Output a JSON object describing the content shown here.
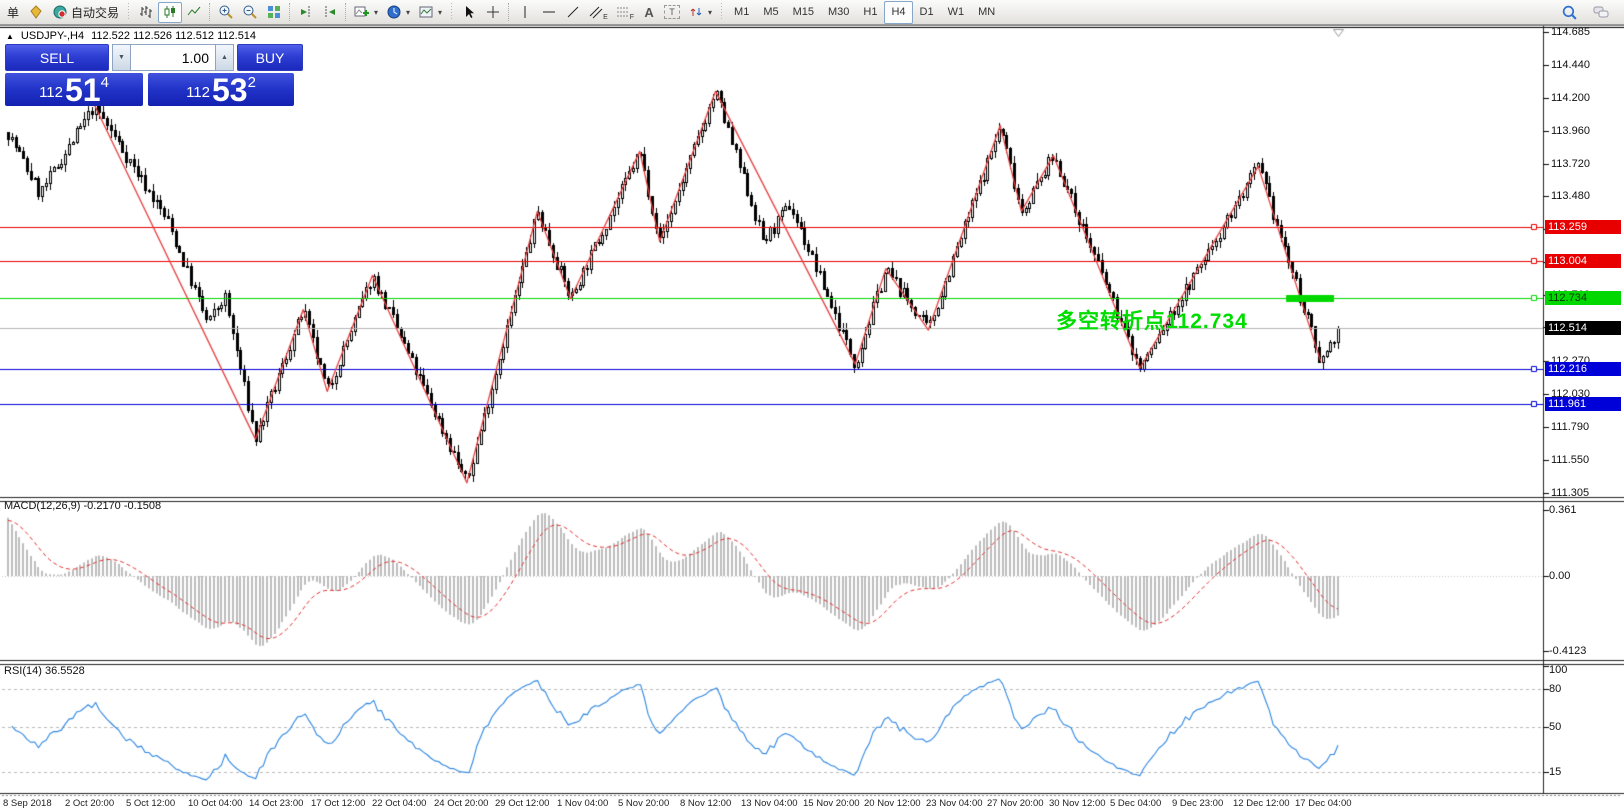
{
  "toolbar": {
    "new_order_label": "单",
    "autotrading_label": "自动交易",
    "timeframes": [
      "M1",
      "M5",
      "M15",
      "M30",
      "H1",
      "H4",
      "D1",
      "W1",
      "MN"
    ],
    "active_timeframe": "H4",
    "tool_glyphs": {
      "channel": "E",
      "fibonacci": "F",
      "text": "A",
      "label": "T"
    },
    "icon_names": [
      "profiles-icon",
      "autotrading-icon",
      "bar-chart-icon",
      "candlestick-chart-icon",
      "line-chart-icon",
      "zoom-in-icon",
      "zoom-out-icon",
      "tile-windows-icon",
      "shift-end-icon",
      "auto-scroll-icon",
      "add-indicator-icon",
      "periods-icon",
      "templates-icon",
      "cursor-icon",
      "crosshair-icon",
      "vertical-line-icon",
      "horizontal-line-icon",
      "trendline-icon",
      "equidistant-channel-icon",
      "fibonacci-icon",
      "text-icon",
      "text-label-icon",
      "arrow-tools-icon",
      "search-icon",
      "chat-icon"
    ]
  },
  "trade_panel": {
    "sell_label": "SELL",
    "buy_label": "BUY",
    "volume": "1.00",
    "sell_price": {
      "base": "112",
      "big": "51",
      "sup": "4"
    },
    "buy_price": {
      "base": "112",
      "big": "53",
      "sup": "2"
    }
  },
  "chart": {
    "symbol": "USDJPY-,H4",
    "ohlc": "112.522 112.526 112.512 112.514"
  },
  "chart_data": {
    "type": "candlestick",
    "symbol": "USDJPY-",
    "timeframe": "H4",
    "last_ohlc": {
      "open": 112.522,
      "high": 112.526,
      "low": 112.512,
      "close": 112.514
    },
    "y_axis": {
      "min": 111.305,
      "max": 114.685,
      "ticks": [
        "114.685",
        "114.440",
        "114.200",
        "113.960",
        "113.720",
        "113.480",
        "113.240",
        "113.000",
        "112.760",
        "112.520",
        "112.270",
        "112.030",
        "111.790",
        "111.550",
        "111.305"
      ]
    },
    "x_axis": {
      "labels": [
        "8 Sep 2018",
        "2 Oct 20:00",
        "5 Oct 12:00",
        "10 Oct 04:00",
        "14 Oct 23:00",
        "17 Oct 12:00",
        "22 Oct 04:00",
        "24 Oct 20:00",
        "29 Oct 12:00",
        "1 Nov 04:00",
        "5 Nov 20:00",
        "8 Nov 12:00",
        "13 Nov 04:00",
        "15 Nov 20:00",
        "20 Nov 12:00",
        "23 Nov 04:00",
        "27 Nov 20:00",
        "30 Nov 12:00",
        "5 Dec 04:00",
        "9 Dec 23:00",
        "12 Dec 12:00",
        "17 Dec 04:00"
      ]
    },
    "candles": {
      "count": 350,
      "path_anchors": [
        [
          0,
          113.95
        ],
        [
          0.024,
          113.5
        ],
        [
          0.065,
          114.15
        ],
        [
          0.12,
          113.3
        ],
        [
          0.15,
          112.55
        ],
        [
          0.163,
          112.75
        ],
        [
          0.186,
          111.7
        ],
        [
          0.222,
          112.65
        ],
        [
          0.24,
          112.05
        ],
        [
          0.274,
          112.9
        ],
        [
          0.345,
          111.38
        ],
        [
          0.398,
          113.37
        ],
        [
          0.423,
          112.73
        ],
        [
          0.475,
          113.81
        ],
        [
          0.49,
          113.15
        ],
        [
          0.532,
          114.25
        ],
        [
          0.568,
          113.15
        ],
        [
          0.588,
          113.42
        ],
        [
          0.637,
          112.25
        ],
        [
          0.66,
          112.95
        ],
        [
          0.692,
          112.5
        ],
        [
          0.746,
          114.0
        ],
        [
          0.762,
          113.37
        ],
        [
          0.786,
          113.78
        ],
        [
          0.851,
          112.22
        ],
        [
          0.94,
          113.7
        ],
        [
          0.987,
          112.27
        ],
        [
          1,
          112.514
        ]
      ]
    },
    "zigzag": {
      "color": "#e54040",
      "points": [
        [
          0.065,
          114.15
        ],
        [
          0.186,
          111.7
        ],
        [
          0.222,
          112.65
        ],
        [
          0.24,
          112.05
        ],
        [
          0.274,
          112.9
        ],
        [
          0.345,
          111.38
        ],
        [
          0.398,
          113.37
        ],
        [
          0.423,
          112.73
        ],
        [
          0.475,
          113.81
        ],
        [
          0.49,
          113.15
        ],
        [
          0.532,
          114.25
        ],
        [
          0.637,
          112.25
        ],
        [
          0.66,
          112.95
        ],
        [
          0.692,
          112.5
        ],
        [
          0.746,
          114.0
        ],
        [
          0.762,
          113.37
        ],
        [
          0.786,
          113.78
        ],
        [
          0.851,
          112.22
        ],
        [
          0.94,
          113.7
        ],
        [
          0.987,
          112.27
        ]
      ]
    },
    "horizontal_lines": [
      {
        "price": 113.259,
        "label": "113.259",
        "color": "#e80000",
        "text_color": "#ffffff",
        "handle": true
      },
      {
        "price": 113.004,
        "label": "113.004",
        "color": "#e80000",
        "text_color": "#ffffff",
        "handle": true
      },
      {
        "price": 112.734,
        "label": "112.734",
        "color": "#00d800",
        "text_color": "#003300",
        "handle": true,
        "thick_segment": [
          0.961,
          0.997
        ]
      },
      {
        "price": 112.216,
        "label": "112.216",
        "color": "#0000d8",
        "text_color": "#ffffff",
        "handle": true
      },
      {
        "price": 111.961,
        "label": "111.961",
        "color": "#0000d8",
        "text_color": "#ffffff",
        "handle": true
      }
    ],
    "current_price": {
      "value": 112.514,
      "label": "112.514",
      "line_color": "#b4b4b4",
      "box_color": "#000000"
    },
    "annotation": {
      "text": "多空转折点112.734",
      "color": "#00dd00"
    },
    "indicators": {
      "macd": {
        "label": "MACD(12,26,9)",
        "values": "-0.2170 -0.1508",
        "ticks": [
          {
            "v": 0.361,
            "label": "0.361"
          },
          {
            "v": 0,
            "label": "0.00"
          },
          {
            "v": -0.4123,
            "label": "-0.4123"
          }
        ],
        "histogram_color": "#bdbdbd",
        "signal_color": "#e03030"
      },
      "rsi": {
        "label": "RSI(14)",
        "values": "36.5528",
        "line_color": "#2e86e0",
        "ticks": [
          {
            "v": 100,
            "label": "100"
          },
          {
            "v": 80,
            "label": "80"
          },
          {
            "v": 50,
            "label": "50"
          },
          {
            "v": 15,
            "label": "15"
          }
        ],
        "levels": [
          80,
          50,
          15
        ]
      }
    }
  }
}
